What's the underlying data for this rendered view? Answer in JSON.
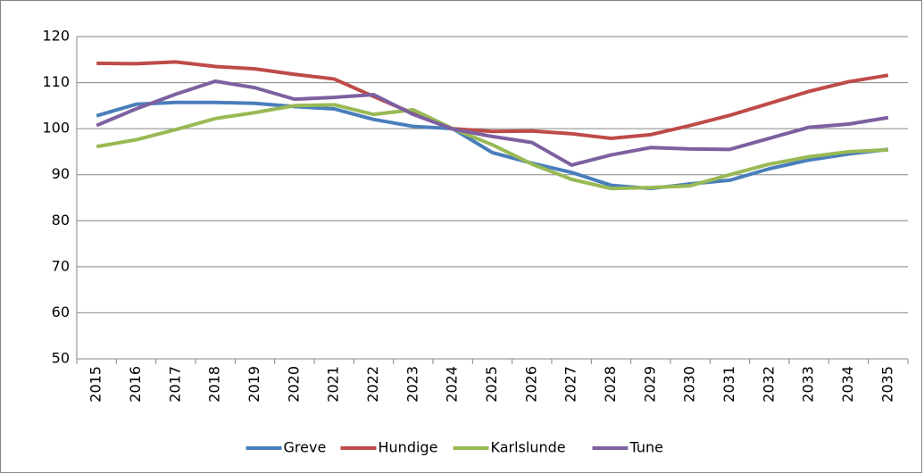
{
  "chart_data": {
    "type": "line",
    "categories": [
      "2015",
      "2016",
      "2017",
      "2018",
      "2019",
      "2020",
      "2021",
      "2022",
      "2023",
      "2024",
      "2025",
      "2026",
      "2027",
      "2028",
      "2029",
      "2030",
      "2031",
      "2032",
      "2033",
      "2034",
      "2035"
    ],
    "series": [
      {
        "name": "Greve",
        "color": "#4a7ebb",
        "values": [
          102.8,
          105.3,
          105.7,
          105.7,
          105.5,
          104.8,
          104.3,
          102,
          100.5,
          100,
          94.8,
          92.5,
          90.5,
          87.7,
          87,
          88,
          88.8,
          91.3,
          93.2,
          94.5,
          95.5
        ]
      },
      {
        "name": "Hundige",
        "color": "#be4b48",
        "values": [
          114.2,
          114.1,
          114.5,
          113.5,
          113,
          111.8,
          110.8,
          107,
          103.3,
          100,
          99.4,
          99.5,
          98.9,
          97.9,
          98.7,
          100.7,
          102.9,
          105.5,
          108.1,
          110.2,
          111.6
        ]
      },
      {
        "name": "Karlslunde",
        "color": "#98b954",
        "values": [
          96.1,
          97.6,
          99.8,
          102.2,
          103.5,
          105,
          105.2,
          103.1,
          104.1,
          100,
          96.5,
          92.3,
          89,
          87,
          87.2,
          87.6,
          90,
          92.3,
          93.9,
          95,
          95.4
        ]
      },
      {
        "name": "Tune",
        "color": "#7d60a0",
        "values": [
          100.7,
          104.3,
          107.5,
          110.3,
          108.9,
          106.4,
          106.8,
          107.4,
          103.1,
          99.9,
          98.3,
          97,
          92.1,
          94.3,
          95.9,
          95.6,
          95.5,
          97.9,
          100.3,
          101,
          102.4
        ]
      }
    ],
    "ylim": [
      50,
      120
    ],
    "yticks": [
      50,
      60,
      70,
      80,
      90,
      100,
      110,
      120
    ],
    "grid": true,
    "legend": "bottom"
  }
}
